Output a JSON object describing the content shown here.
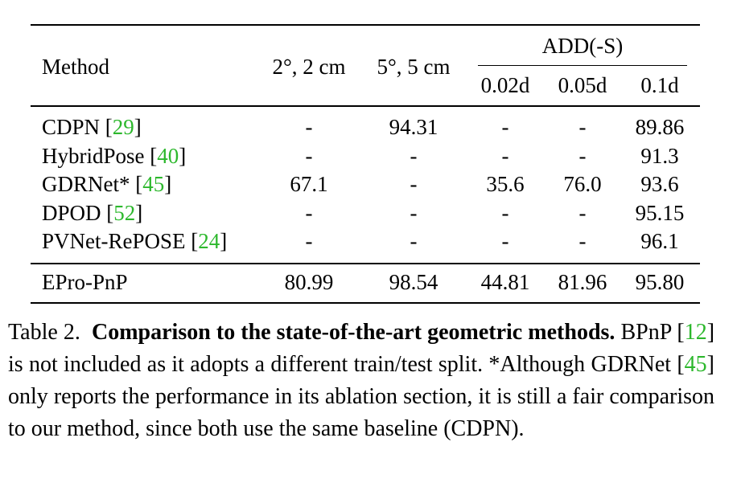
{
  "table": {
    "headers": {
      "method": "Method",
      "col1": "2°, 2 cm",
      "col2": "5°, 5 cm",
      "group": "ADD(-S)",
      "sub1": "0.02d",
      "sub2": "0.05d",
      "sub3": "0.1d"
    },
    "rows": [
      {
        "name": "CDPN ",
        "cite": "29",
        "c1": "-",
        "c2": "94.31",
        "c3": "-",
        "c4": "-",
        "c5": "89.86"
      },
      {
        "name": "HybridPose ",
        "cite": "40",
        "c1": "-",
        "c2": "-",
        "c3": "-",
        "c4": "-",
        "c5": "91.3"
      },
      {
        "name": "GDRNet* ",
        "cite": "45",
        "c1": "67.1",
        "c2": "-",
        "c3": "35.6",
        "c4": "76.0",
        "c5": "93.6"
      },
      {
        "name": "DPOD ",
        "cite": "52",
        "c1": "-",
        "c2": "-",
        "c3": "-",
        "c4": "-",
        "c5": "95.15"
      },
      {
        "name": "PVNet-RePOSE ",
        "cite": "24",
        "c1": "-",
        "c2": "-",
        "c3": "-",
        "c4": "-",
        "c5": "96.1"
      }
    ],
    "final_row": {
      "name": "EPro-PnP",
      "c1": "80.99",
      "c2": "98.54",
      "c3": "44.81",
      "c4": "81.96",
      "c5": "95.80"
    }
  },
  "caption": {
    "label": "Table 2.",
    "title": "Comparison to the state-of-the-art geometric methods.",
    "t1": "BPnP [",
    "cite1": "12",
    "t2": "] is not included as it adopts a different train/test split. *Although GDRNet [",
    "cite2": "45",
    "t3": "] only reports the performance in its ablation section, it is still a fair comparison to our method, since both use the same baseline (CDPN)."
  },
  "colors": {
    "citation": "#2db82d",
    "text": "#000000"
  }
}
